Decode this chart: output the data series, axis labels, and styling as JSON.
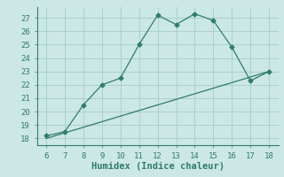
{
  "line1_x": [
    6,
    7,
    8,
    9,
    10,
    11,
    12,
    13,
    14,
    15,
    16,
    17,
    18
  ],
  "line1_y": [
    18.2,
    18.5,
    20.5,
    22.0,
    22.5,
    25.0,
    27.2,
    26.5,
    27.3,
    26.8,
    24.8,
    22.3,
    23.0
  ],
  "line2_x": [
    6,
    18
  ],
  "line2_y": [
    18.0,
    23.0
  ],
  "line_color": "#2e7d6e",
  "bg_color": "#cce8e4",
  "grid_color": "#aad0cc",
  "xlabel": "Humidex (Indice chaleur)",
  "xlim": [
    5.5,
    18.5
  ],
  "ylim": [
    17.5,
    27.8
  ],
  "xticks": [
    6,
    7,
    8,
    9,
    10,
    11,
    12,
    13,
    14,
    15,
    16,
    17,
    18
  ],
  "yticks": [
    18,
    19,
    20,
    21,
    22,
    23,
    24,
    25,
    26,
    27
  ],
  "xlabel_fontsize": 7.5,
  "tick_fontsize": 6.5
}
